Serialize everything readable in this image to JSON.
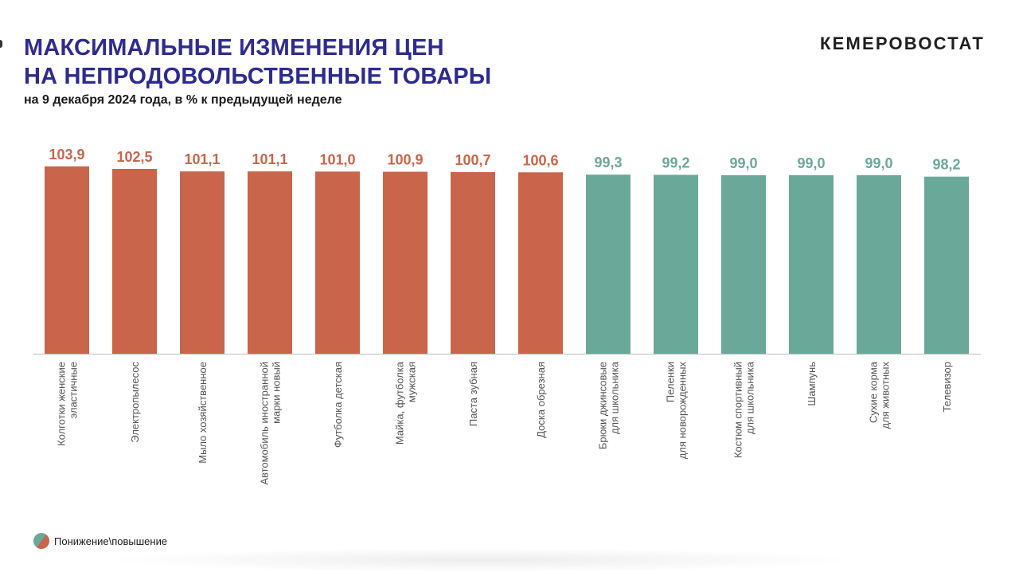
{
  "slide": {
    "title_line1": "МАКСИМАЛЬНЫЕ ИЗМЕНЕНИЯ ЦЕН",
    "title_line2": "НА НЕПРОДОВОЛЬСТВЕННЫЕ ТОВАРЫ",
    "subtitle": "на 9 декабря 2024 года, в % к предыдущей неделе",
    "brand": "КЕМЕРОВОСТАТ",
    "legend_label": "Понижение\\повышение"
  },
  "colors": {
    "title": "#2e2b8f",
    "increase": "#c8654b",
    "decrease": "#6aa99a",
    "axis": "#bdbdbd",
    "category_text": "#555555"
  },
  "chart_data": {
    "type": "bar",
    "categories": [
      [
        "Колготки женские",
        "эластичные"
      ],
      [
        "Электропылесос"
      ],
      [
        "Мыло хозяйственное"
      ],
      [
        "Автомобиль иностранной",
        "марки новый"
      ],
      [
        "Футболка детская"
      ],
      [
        "Майка, футболка",
        "мужская"
      ],
      [
        "Паста зубная"
      ],
      [
        "Доска обрезная"
      ],
      [
        "Брюки джинсовые",
        "для школьника"
      ],
      [
        "Пеленки",
        "для новорожденных"
      ],
      [
        "Костюм спортивный",
        "для школьника"
      ],
      [
        "Шампунь"
      ],
      [
        "Сухие корма",
        "для животных"
      ],
      [
        "Телевизор"
      ]
    ],
    "values": [
      103.9,
      102.5,
      101.1,
      101.1,
      101.0,
      100.9,
      100.7,
      100.6,
      99.3,
      99.2,
      99.0,
      99.0,
      99.0,
      98.2
    ],
    "labels": [
      "103,9",
      "102,5",
      "101,1",
      "101,1",
      "101,0",
      "100,9",
      "100,7",
      "100,6",
      "99,3",
      "99,2",
      "99,0",
      "99,0",
      "99,0",
      "98,2"
    ],
    "ylim": [
      0,
      110
    ],
    "grid": false,
    "xlabel": "",
    "ylabel": ""
  }
}
